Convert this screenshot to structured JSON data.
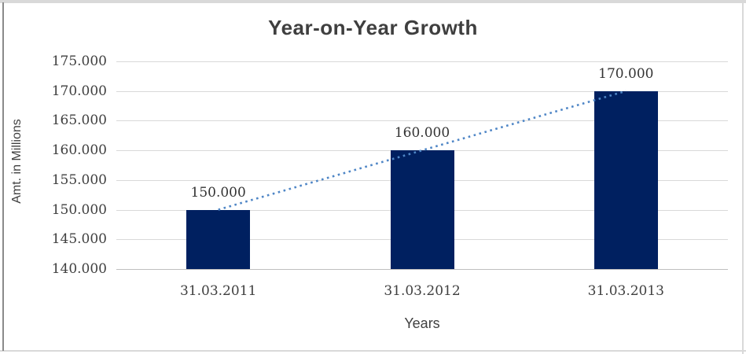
{
  "chart_data": {
    "type": "bar",
    "title": "Year-on-Year Growth",
    "xlabel": "Years",
    "ylabel": "Amt. in Millions",
    "categories": [
      "31.03.2011",
      "31.03.2012",
      "31.03.2013"
    ],
    "values": [
      150000,
      160000,
      170000
    ],
    "data_labels": [
      "150.000",
      "160.000",
      "170.000"
    ],
    "ylim": [
      140000,
      175000
    ],
    "ytick_step": 5000,
    "ytick_labels": [
      "140.000",
      "145.000",
      "150.000",
      "155.000",
      "160.000",
      "165.000",
      "170.000",
      "175.000"
    ],
    "grid": "horizontal-only",
    "legend": "none",
    "trendline": {
      "type": "linear",
      "style": "dotted"
    },
    "colors": {
      "bar": "#002060",
      "trendline": "#4f86c6",
      "gridline": "#d9d9d9",
      "axis_line": "#bfbfbf",
      "text": "#404040",
      "title_text": "#3f3f3f",
      "frame_light": "#d9d9d9",
      "frame_dark": "#8a8a8a"
    }
  }
}
